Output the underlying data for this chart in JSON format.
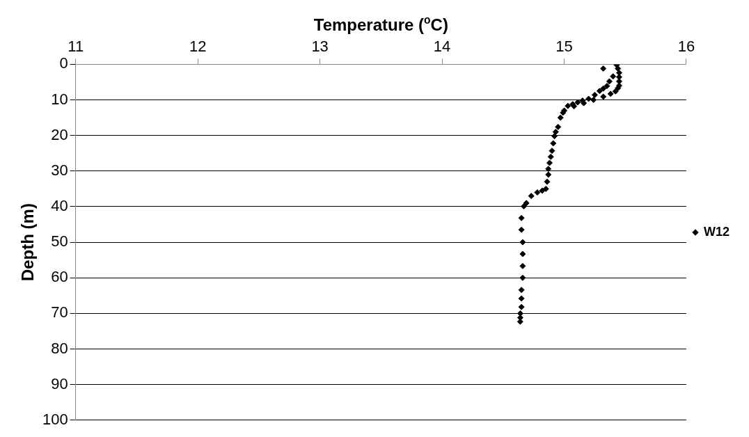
{
  "chart_data": {
    "type": "scatter",
    "xlabel": "Temperature ($^{o}$C)",
    "ylabel": "Depth (m)",
    "xlim": [
      11,
      16
    ],
    "xticks": [
      11,
      12,
      13,
      14,
      15,
      16
    ],
    "ylim": [
      100,
      0
    ],
    "yticks": [
      0,
      10,
      20,
      30,
      40,
      50,
      60,
      70,
      80,
      90,
      100
    ],
    "grid": "y",
    "legend": "right",
    "marker": "diamond",
    "series": [
      {
        "name": "W12",
        "color": "#000000",
        "x": [
          15.43,
          15.44,
          15.45,
          15.45,
          15.45,
          15.45,
          15.44,
          15.42,
          15.38,
          15.32,
          15.24,
          15.16,
          15.08,
          14.99,
          15.32,
          15.4,
          15.37,
          15.35,
          15.32,
          15.29,
          15.25,
          15.2,
          15.15,
          15.11,
          15.07,
          15.03,
          15.0,
          14.97,
          14.95,
          14.93,
          14.92,
          14.91,
          14.9,
          14.89,
          14.88,
          14.87,
          14.87,
          14.86,
          14.85,
          14.82,
          14.78,
          14.73,
          14.69,
          14.67,
          14.65,
          14.65,
          14.66,
          14.66,
          14.66,
          14.66,
          14.65,
          14.65,
          14.65,
          14.64,
          14.64,
          14.64
        ],
        "values": [
          0.2,
          1.2,
          2.4,
          3.6,
          4.8,
          6.0,
          6.7,
          7.6,
          8.3,
          9.1,
          10.0,
          10.9,
          11.8,
          13.6,
          1.2,
          3.4,
          4.8,
          6.1,
          6.8,
          7.5,
          8.6,
          9.7,
          10.2,
          10.7,
          11.2,
          11.7,
          13.0,
          15.0,
          17.6,
          19.0,
          20.2,
          22.2,
          24.3,
          26.0,
          27.7,
          29.4,
          31.0,
          33.0,
          35.0,
          35.5,
          36.0,
          37.0,
          39.0,
          39.9,
          43.2,
          46.5,
          50.0,
          53.3,
          56.7,
          60.0,
          63.4,
          65.8,
          68.2,
          70.0,
          71.2,
          72.3
        ]
      }
    ]
  }
}
